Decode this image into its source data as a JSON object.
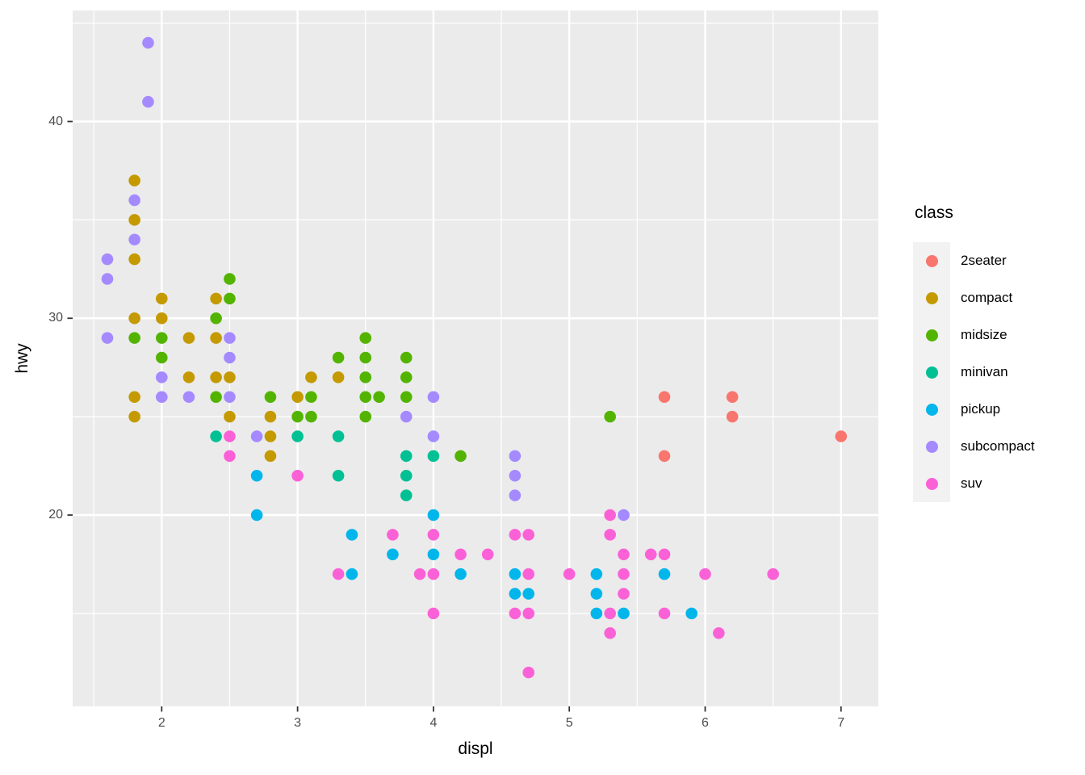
{
  "chart_data": {
    "type": "scatter",
    "title": "",
    "xlabel": "displ",
    "ylabel": "hwy",
    "x_ticks": [
      2,
      3,
      4,
      5,
      6,
      7
    ],
    "x_minor_ticks": [
      1.5,
      2.5,
      3.5,
      4.5,
      5.5,
      6.5
    ],
    "y_ticks": [
      20,
      30,
      40
    ],
    "y_minor_ticks": [
      15,
      25,
      35,
      45
    ],
    "xlim": [
      1.33,
      7.27
    ],
    "ylim": [
      10.4,
      45.6
    ],
    "grid": "on",
    "legend": {
      "title": "class",
      "position": "right",
      "entries": [
        {
          "label": "2seater",
          "color": "#F8766D"
        },
        {
          "label": "compact",
          "color": "#C49A00"
        },
        {
          "label": "midsize",
          "color": "#53B400"
        },
        {
          "label": "minivan",
          "color": "#00C094"
        },
        {
          "label": "pickup",
          "color": "#00B6EB"
        },
        {
          "label": "subcompact",
          "color": "#A58AFF"
        },
        {
          "label": "suv",
          "color": "#FB61D7"
        }
      ]
    },
    "series": [
      {
        "name": "2seater",
        "points": [
          [
            5.7,
            26
          ],
          [
            5.7,
            23
          ],
          [
            6.2,
            26
          ],
          [
            6.2,
            25
          ],
          [
            7.0,
            24
          ]
        ]
      },
      {
        "name": "compact",
        "points": [
          [
            1.8,
            37
          ],
          [
            1.8,
            35
          ],
          [
            1.8,
            33
          ],
          [
            1.8,
            30
          ],
          [
            1.8,
            26
          ],
          [
            1.8,
            25
          ],
          [
            2.0,
            31
          ],
          [
            2.0,
            30
          ],
          [
            2.2,
            29
          ],
          [
            2.2,
            27
          ],
          [
            2.4,
            31
          ],
          [
            2.4,
            29
          ],
          [
            2.4,
            27
          ],
          [
            2.5,
            27
          ],
          [
            2.5,
            25
          ],
          [
            2.8,
            25
          ],
          [
            2.8,
            24
          ],
          [
            2.8,
            23
          ],
          [
            3.0,
            26
          ],
          [
            3.1,
            27
          ],
          [
            3.3,
            27
          ]
        ]
      },
      {
        "name": "midsize",
        "points": [
          [
            1.8,
            29
          ],
          [
            2.0,
            29
          ],
          [
            2.0,
            28
          ],
          [
            2.4,
            30
          ],
          [
            2.4,
            26
          ],
          [
            2.5,
            32
          ],
          [
            2.5,
            31
          ],
          [
            2.8,
            26
          ],
          [
            3.0,
            25
          ],
          [
            3.1,
            26
          ],
          [
            3.1,
            25
          ],
          [
            3.3,
            28
          ],
          [
            3.5,
            29
          ],
          [
            3.5,
            28
          ],
          [
            3.5,
            27
          ],
          [
            3.5,
            26
          ],
          [
            3.5,
            25
          ],
          [
            3.6,
            26
          ],
          [
            3.8,
            28
          ],
          [
            3.8,
            27
          ],
          [
            3.8,
            26
          ],
          [
            4.2,
            23
          ],
          [
            5.3,
            25
          ]
        ]
      },
      {
        "name": "minivan",
        "points": [
          [
            2.4,
            24
          ],
          [
            3.0,
            24
          ],
          [
            3.3,
            24
          ],
          [
            3.3,
            22
          ],
          [
            3.8,
            23
          ],
          [
            3.8,
            22
          ],
          [
            3.8,
            21
          ],
          [
            4.0,
            23
          ]
        ]
      },
      {
        "name": "pickup",
        "points": [
          [
            2.7,
            22
          ],
          [
            2.7,
            20
          ],
          [
            3.4,
            19
          ],
          [
            3.4,
            17
          ],
          [
            3.7,
            18
          ],
          [
            4.0,
            20
          ],
          [
            4.0,
            18
          ],
          [
            4.2,
            17
          ],
          [
            4.6,
            17
          ],
          [
            4.6,
            16
          ],
          [
            4.7,
            16
          ],
          [
            5.2,
            17
          ],
          [
            5.2,
            16
          ],
          [
            5.2,
            15
          ],
          [
            5.4,
            15
          ],
          [
            5.7,
            17
          ],
          [
            5.9,
            15
          ]
        ]
      },
      {
        "name": "subcompact",
        "points": [
          [
            1.6,
            33
          ],
          [
            1.6,
            32
          ],
          [
            1.6,
            29
          ],
          [
            1.8,
            36
          ],
          [
            1.8,
            34
          ],
          [
            1.9,
            44
          ],
          [
            1.9,
            41
          ],
          [
            2.0,
            27
          ],
          [
            2.0,
            26
          ],
          [
            2.2,
            26
          ],
          [
            2.5,
            29
          ],
          [
            2.5,
            28
          ],
          [
            2.5,
            26
          ],
          [
            2.7,
            24
          ],
          [
            3.8,
            25
          ],
          [
            4.0,
            26
          ],
          [
            4.0,
            24
          ],
          [
            4.6,
            23
          ],
          [
            4.6,
            22
          ],
          [
            4.6,
            21
          ],
          [
            5.4,
            20
          ]
        ]
      },
      {
        "name": "suv",
        "points": [
          [
            2.5,
            24
          ],
          [
            2.5,
            23
          ],
          [
            3.0,
            22
          ],
          [
            3.3,
            17
          ],
          [
            3.7,
            19
          ],
          [
            3.9,
            17
          ],
          [
            4.0,
            19
          ],
          [
            4.0,
            17
          ],
          [
            4.0,
            15
          ],
          [
            4.2,
            18
          ],
          [
            4.4,
            18
          ],
          [
            4.6,
            19
          ],
          [
            4.6,
            15
          ],
          [
            4.7,
            19
          ],
          [
            4.7,
            17
          ],
          [
            4.7,
            15
          ],
          [
            4.7,
            12
          ],
          [
            5.0,
            17
          ],
          [
            5.3,
            20
          ],
          [
            5.3,
            19
          ],
          [
            5.3,
            15
          ],
          [
            5.3,
            14
          ],
          [
            5.4,
            18
          ],
          [
            5.4,
            17
          ],
          [
            5.4,
            16
          ],
          [
            5.6,
            18
          ],
          [
            5.7,
            18
          ],
          [
            5.7,
            15
          ],
          [
            6.0,
            17
          ],
          [
            6.1,
            14
          ],
          [
            6.5,
            17
          ]
        ]
      }
    ],
    "style_colors": {
      "panel_background": "#EBEBEB",
      "gridline": "#FFFFFF",
      "legend_key_background": "#F2F2F2",
      "axis_text": "#4D4D4D",
      "axis_title": "#000000",
      "tick_mark": "#333333"
    }
  }
}
